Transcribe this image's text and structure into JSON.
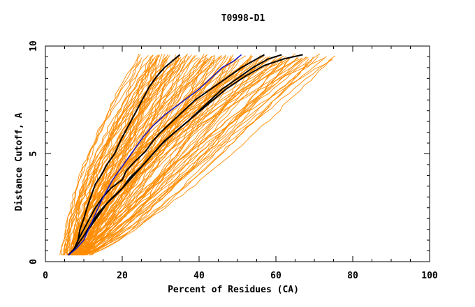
{
  "chart_data": {
    "type": "line",
    "title": "T0998-D1",
    "xlabel": "Percent of Residues (CA)",
    "ylabel": "Distance Cutoff, A",
    "xlim": [
      0,
      100
    ],
    "ylim": [
      0,
      10
    ],
    "x_ticks": [
      "0",
      "20",
      "40",
      "60",
      "80",
      "100"
    ],
    "y_ticks": [
      "0",
      "5",
      "10"
    ],
    "grid": false,
    "colors": {
      "background_models": "#ff8c00",
      "highlight_black": "#000000",
      "highlight_blue": "#1010c8"
    },
    "series": [
      {
        "color": "#000000",
        "points": [
          [
            6,
            0.3
          ],
          [
            7.5,
            0.6
          ],
          [
            8.5,
            1.0
          ],
          [
            9,
            1.5
          ],
          [
            10,
            2.0
          ],
          [
            11,
            2.6
          ],
          [
            12,
            3.1
          ],
          [
            13,
            3.6
          ],
          [
            14.5,
            4.0
          ],
          [
            16,
            4.5
          ],
          [
            18,
            5.0
          ],
          [
            19.5,
            5.6
          ],
          [
            21,
            6.1
          ],
          [
            22.5,
            6.6
          ],
          [
            24,
            7.1
          ],
          [
            25.5,
            7.6
          ],
          [
            27,
            8.1
          ],
          [
            29,
            8.6
          ],
          [
            31,
            9.0
          ],
          [
            33,
            9.3
          ],
          [
            35,
            9.6
          ]
        ]
      },
      {
        "color": "#000000",
        "points": [
          [
            6,
            0.3
          ],
          [
            7.5,
            0.6
          ],
          [
            8.5,
            1.0
          ],
          [
            10,
            1.5
          ],
          [
            11.5,
            2.0
          ],
          [
            13,
            2.5
          ],
          [
            15,
            3.0
          ],
          [
            17,
            3.4
          ],
          [
            20,
            3.8
          ],
          [
            21,
            4.2
          ],
          [
            23,
            4.6
          ],
          [
            26,
            5.1
          ],
          [
            28,
            5.6
          ],
          [
            30,
            6.0
          ],
          [
            33,
            6.5
          ],
          [
            36,
            7.0
          ],
          [
            39,
            7.5
          ],
          [
            43,
            8.0
          ],
          [
            47,
            8.5
          ],
          [
            51,
            9.0
          ],
          [
            55,
            9.4
          ],
          [
            57,
            9.6
          ]
        ]
      },
      {
        "color": "#000000",
        "points": [
          [
            6,
            0.3
          ],
          [
            8,
            0.7
          ],
          [
            10,
            1.2
          ],
          [
            12,
            1.7
          ],
          [
            14,
            2.2
          ],
          [
            16,
            2.7
          ],
          [
            19,
            3.2
          ],
          [
            21,
            3.6
          ],
          [
            24,
            4.2
          ],
          [
            27,
            4.8
          ],
          [
            30,
            5.4
          ],
          [
            33,
            5.9
          ],
          [
            37,
            6.5
          ],
          [
            40,
            7.0
          ],
          [
            43,
            7.5
          ],
          [
            46,
            8.0
          ],
          [
            50,
            8.5
          ],
          [
            54,
            9.0
          ],
          [
            58,
            9.4
          ],
          [
            61.5,
            9.6
          ]
        ]
      },
      {
        "color": "#000000",
        "points": [
          [
            6,
            0.3
          ],
          [
            8,
            0.7
          ],
          [
            10,
            1.2
          ],
          [
            12,
            1.8
          ],
          [
            14,
            2.3
          ],
          [
            17,
            2.9
          ],
          [
            20,
            3.4
          ],
          [
            22,
            3.9
          ],
          [
            25,
            4.4
          ],
          [
            28,
            5.0
          ],
          [
            31,
            5.6
          ],
          [
            35,
            6.2
          ],
          [
            39,
            6.8
          ],
          [
            43,
            7.4
          ],
          [
            47,
            8.0
          ],
          [
            52,
            8.6
          ],
          [
            57,
            9.1
          ],
          [
            62,
            9.4
          ],
          [
            67,
            9.6
          ]
        ]
      },
      {
        "color": "#1010c8",
        "points": [
          [
            6,
            0.3
          ],
          [
            8,
            0.6
          ],
          [
            10,
            1.0
          ],
          [
            11.5,
            1.6
          ],
          [
            13,
            2.2
          ],
          [
            14.5,
            2.8
          ],
          [
            16,
            3.3
          ],
          [
            17.5,
            3.8
          ],
          [
            19.5,
            4.3
          ],
          [
            21.5,
            4.8
          ],
          [
            23.5,
            5.3
          ],
          [
            25.5,
            5.8
          ],
          [
            28,
            6.3
          ],
          [
            31,
            6.8
          ],
          [
            34,
            7.2
          ],
          [
            37,
            7.6
          ],
          [
            40,
            8.0
          ],
          [
            43,
            8.5
          ],
          [
            46,
            9.0
          ],
          [
            49,
            9.3
          ],
          [
            51,
            9.6
          ]
        ]
      }
    ]
  }
}
